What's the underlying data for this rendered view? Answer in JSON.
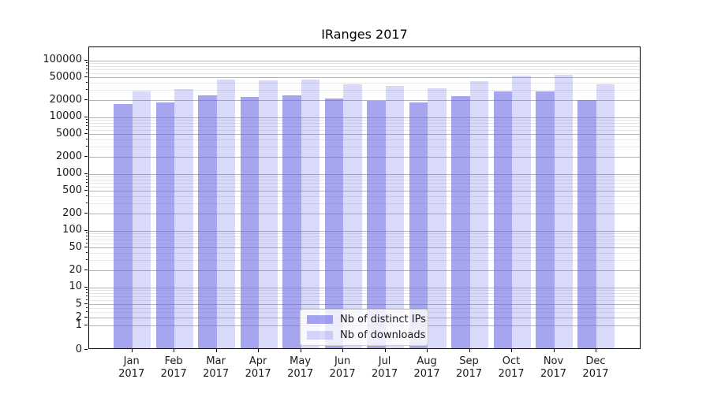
{
  "chart_data": {
    "type": "bar",
    "title": "IRanges 2017",
    "categories": [
      {
        "month": "Jan",
        "year": "2017"
      },
      {
        "month": "Feb",
        "year": "2017"
      },
      {
        "month": "Mar",
        "year": "2017"
      },
      {
        "month": "Apr",
        "year": "2017"
      },
      {
        "month": "May",
        "year": "2017"
      },
      {
        "month": "Jun",
        "year": "2017"
      },
      {
        "month": "Jul",
        "year": "2017"
      },
      {
        "month": "Aug",
        "year": "2017"
      },
      {
        "month": "Sep",
        "year": "2017"
      },
      {
        "month": "Oct",
        "year": "2017"
      },
      {
        "month": "Nov",
        "year": "2017"
      },
      {
        "month": "Dec",
        "year": "2017"
      }
    ],
    "series": [
      {
        "name": "Nb of distinct IPs",
        "color": "rgba(102,102,230,0.58)",
        "values": [
          16000,
          16800,
          23000,
          21300,
          22800,
          20200,
          17900,
          16900,
          22000,
          26400,
          26300,
          19000
        ]
      },
      {
        "name": "Nb of downloads",
        "color": "rgba(102,102,230,0.25)",
        "values": [
          27000,
          29500,
          43000,
          41200,
          43800,
          35200,
          33200,
          30600,
          40400,
          51000,
          51600,
          35200
        ]
      }
    ],
    "y_axis": {
      "scale": "symlog",
      "tick_labels": [
        100000,
        50000,
        20000,
        10000,
        5000,
        2000,
        1000,
        500,
        200,
        100,
        50,
        20,
        10,
        5,
        2,
        1,
        0
      ]
    },
    "legend": {
      "position": "lower center",
      "entries": [
        "Nb of distinct IPs",
        "Nb of downloads"
      ]
    },
    "grid": {
      "major": true,
      "minor": true
    }
  }
}
